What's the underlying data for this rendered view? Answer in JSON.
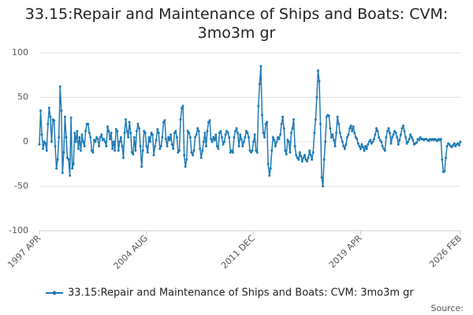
{
  "chart_data": {
    "type": "line",
    "title": "33.15:Repair and Maintenance of Ships and Boats: CVM: 3mo3m gr",
    "source": "Source:",
    "categories": [
      "1997 APR",
      null,
      null,
      null,
      null,
      null,
      null,
      null,
      null,
      null,
      null,
      null,
      null,
      null,
      null,
      null,
      null,
      null,
      null,
      null,
      null,
      null,
      null,
      null,
      null,
      null,
      null,
      null,
      null,
      null,
      null,
      null,
      null,
      null,
      null,
      null,
      null,
      null,
      null,
      null,
      null,
      null,
      null,
      null,
      null,
      null,
      null,
      null,
      null,
      null,
      null,
      null,
      null,
      null,
      null,
      null,
      null,
      null,
      null,
      null,
      null,
      null,
      null,
      null,
      null,
      null,
      null,
      null,
      null,
      null,
      null,
      null,
      null,
      null,
      null,
      null,
      null,
      null,
      null,
      null,
      null,
      null,
      null,
      null,
      null,
      null,
      null,
      null,
      "2004 AUG",
      null,
      null,
      null,
      null,
      null,
      null,
      null,
      null,
      null,
      null,
      null,
      null,
      null,
      null,
      null,
      null,
      null,
      null,
      null,
      null,
      null,
      null,
      null,
      null,
      null,
      null,
      null,
      null,
      null,
      null,
      null,
      null,
      null,
      null,
      null,
      null,
      null,
      null,
      null,
      null,
      null,
      null,
      null,
      null,
      null,
      null,
      null,
      null,
      null,
      null,
      null,
      null,
      null,
      null,
      null,
      null,
      null,
      null,
      null,
      null,
      null,
      null,
      null,
      null,
      null,
      null,
      null,
      null,
      null,
      null,
      null,
      null,
      null,
      null,
      null,
      null,
      null,
      null,
      null,
      null,
      null,
      null,
      null,
      null,
      null,
      null,
      null,
      "2011 DEC",
      null,
      null,
      null,
      null,
      null,
      null,
      null,
      null,
      null,
      null,
      null,
      null,
      null,
      null,
      null,
      null,
      null,
      null,
      null,
      null,
      null,
      null,
      null,
      null,
      null,
      null,
      null,
      null,
      null,
      null,
      null,
      null,
      null,
      null,
      null,
      null,
      null,
      null,
      null,
      null,
      null,
      null,
      null,
      null,
      null,
      null,
      null,
      null,
      null,
      null,
      null,
      null,
      null,
      null,
      null,
      null,
      null,
      null,
      null,
      null,
      null,
      null,
      null,
      null,
      null,
      null,
      null,
      null,
      null,
      null,
      null,
      null,
      null,
      null,
      null,
      null,
      null,
      null,
      null,
      null,
      null,
      null,
      null,
      null,
      null,
      null,
      null,
      "2019 APR",
      null,
      null,
      null,
      null,
      null,
      null,
      null,
      null,
      null,
      null,
      null,
      null,
      null,
      null,
      null,
      null,
      null,
      null,
      null,
      null,
      null,
      null,
      null,
      null,
      null,
      null,
      null,
      null,
      null,
      null,
      null,
      null,
      null,
      null,
      null,
      null,
      null,
      null,
      null,
      null,
      null,
      null,
      null,
      null,
      null,
      null,
      null,
      null,
      null,
      null,
      null,
      null,
      null,
      null,
      null,
      null,
      null,
      null,
      null,
      null,
      null,
      null,
      null,
      null,
      null,
      null,
      null,
      null,
      null,
      null,
      null,
      null,
      null,
      null,
      null,
      null,
      null,
      null,
      null,
      null,
      null,
      "2026 FEB"
    ],
    "series": [
      {
        "name": "33.15:Repair and Maintenance of Ships and Boats: CVM: 3mo3m gr",
        "color": "#1f7bb6",
        "values": [
          -3,
          35,
          8,
          -8,
          0,
          -2,
          -10,
          20,
          38,
          28,
          0,
          25,
          24,
          -5,
          -30,
          -20,
          5,
          62,
          35,
          -35,
          -12,
          28,
          5,
          -18,
          -20,
          -38,
          27,
          -30,
          -25,
          10,
          0,
          12,
          -8,
          5,
          -10,
          8,
          0,
          -5,
          12,
          20,
          20,
          10,
          5,
          -10,
          -12,
          2,
          0,
          5,
          3,
          -5,
          5,
          8,
          2,
          3,
          0,
          -5,
          17,
          12,
          3,
          10,
          -8,
          0,
          -10,
          14,
          12,
          -10,
          0,
          5,
          -5,
          -18,
          10,
          25,
          12,
          5,
          22,
          10,
          -12,
          -14,
          5,
          -10,
          12,
          20,
          15,
          -5,
          -28,
          -10,
          12,
          10,
          -5,
          -12,
          5,
          0,
          10,
          8,
          -15,
          -5,
          2,
          14,
          10,
          -8,
          -5,
          5,
          22,
          24,
          3,
          -5,
          5,
          2,
          8,
          -3,
          -8,
          10,
          12,
          5,
          -12,
          -10,
          25,
          38,
          40,
          -15,
          -28,
          -20,
          12,
          10,
          5,
          -12,
          -15,
          -10,
          5,
          8,
          15,
          12,
          -8,
          -18,
          -10,
          0,
          10,
          -5,
          12,
          22,
          24,
          3,
          0,
          5,
          2,
          8,
          -5,
          -8,
          10,
          12,
          5,
          -3,
          0,
          8,
          12,
          10,
          5,
          -12,
          -10,
          -12,
          5,
          12,
          15,
          10,
          -5,
          8,
          3,
          -5,
          0,
          5,
          12,
          10,
          5,
          -10,
          -12,
          -10,
          0,
          8,
          -10,
          -12,
          40,
          65,
          85,
          30,
          10,
          5,
          20,
          22,
          -25,
          -38,
          -30,
          -10,
          5,
          2,
          -5,
          0,
          5,
          3,
          8,
          20,
          28,
          15,
          -10,
          -14,
          2,
          0,
          -12,
          10,
          15,
          25,
          -5,
          -15,
          -18,
          -20,
          -12,
          -16,
          -22,
          -18,
          -15,
          -20,
          -22,
          -18,
          -10,
          -15,
          -20,
          -12,
          10,
          25,
          50,
          80,
          68,
          20,
          -40,
          -50,
          -20,
          0,
          28,
          30,
          29,
          15,
          5,
          8,
          2,
          -5,
          10,
          28,
          20,
          10,
          5,
          0,
          -5,
          -8,
          -3,
          5,
          8,
          15,
          18,
          12,
          17,
          10,
          5,
          3,
          -2,
          -5,
          -8,
          -3,
          -6,
          -10,
          -5,
          -8,
          -3,
          0,
          2,
          -2,
          0,
          3,
          8,
          15,
          12,
          5,
          2,
          0,
          -5,
          -8,
          -10,
          5,
          12,
          15,
          10,
          -2,
          5,
          8,
          12,
          10,
          5,
          -3,
          2,
          8,
          15,
          18,
          12,
          5,
          -2,
          0,
          3,
          8,
          5,
          2,
          -3,
          -2,
          -1,
          3,
          2,
          5,
          3,
          3,
          2,
          3,
          3,
          2,
          1,
          3,
          2,
          3,
          2,
          3,
          2,
          1,
          3,
          2,
          3,
          -20,
          -34,
          -33,
          -18,
          -5,
          -2,
          -3,
          -5,
          -6,
          -4,
          -2,
          -5,
          -3,
          -2,
          -4,
          0
        ]
      }
    ],
    "ylim": [
      -100,
      100
    ],
    "yticks": [
      -100,
      -50,
      0,
      50,
      100
    ],
    "grid": true,
    "legend": "bottom"
  }
}
